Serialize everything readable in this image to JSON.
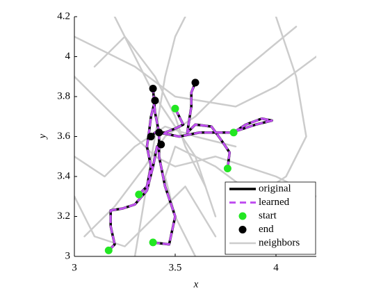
{
  "chart_data": {
    "type": "trajectory",
    "x_label": "x",
    "y_label": "y",
    "xlim": [
      3,
      4.2
    ],
    "ylim": [
      3,
      4.2
    ],
    "xticks": [
      3,
      3.5,
      4
    ],
    "yticks": [
      3,
      3.2,
      3.4,
      3.6,
      3.8,
      4,
      4.2
    ],
    "legend": "lower right",
    "series": [
      {
        "name": "original",
        "color": "#000000",
        "style": "solid",
        "width": 3.5,
        "trajectories": [
          {
            "x": [
              3.17,
              3.2,
              3.18,
              3.18,
              3.24,
              3.3,
              3.36,
              3.39,
              3.41,
              3.43
            ],
            "y": [
              3.03,
              3.06,
              3.15,
              3.23,
              3.24,
              3.26,
              3.33,
              3.45,
              3.55,
              3.56
            ]
          },
          {
            "x": [
              3.32,
              3.36,
              3.38,
              3.36,
              3.37,
              3.38,
              3.4
            ],
            "y": [
              3.31,
              3.35,
              3.45,
              3.55,
              3.62,
              3.7,
              3.78
            ]
          },
          {
            "x": [
              3.39,
              3.47,
              3.5,
              3.45,
              3.42,
              3.42
            ],
            "y": [
              3.07,
              3.06,
              3.2,
              3.35,
              3.5,
              3.62
            ]
          },
          {
            "x": [
              3.5,
              3.54,
              3.5,
              3.45,
              3.4,
              3.38
            ],
            "y": [
              3.74,
              3.66,
              3.64,
              3.62,
              3.62,
              3.6
            ]
          },
          {
            "x": [
              3.76,
              3.77,
              3.73,
              3.68,
              3.6,
              3.56,
              3.58,
              3.58,
              3.6
            ],
            "y": [
              3.44,
              3.52,
              3.58,
              3.65,
              3.66,
              3.62,
              3.75,
              3.82,
              3.87
            ]
          },
          {
            "x": [
              3.79,
              3.85,
              3.93,
              3.98,
              3.9,
              3.78,
              3.62,
              3.52,
              3.42,
              3.4,
              3.39
            ],
            "y": [
              3.62,
              3.66,
              3.69,
              3.68,
              3.66,
              3.62,
              3.62,
              3.6,
              3.62,
              3.72,
              3.84
            ]
          }
        ]
      },
      {
        "name": "learned",
        "color": "#c050f0",
        "style": "dashed",
        "width": 3,
        "trajectories": [
          {
            "x": [
              3.17,
              3.2,
              3.18,
              3.18,
              3.24,
              3.3,
              3.36,
              3.39,
              3.41,
              3.43
            ],
            "y": [
              3.03,
              3.06,
              3.15,
              3.23,
              3.24,
              3.26,
              3.33,
              3.45,
              3.55,
              3.56
            ]
          },
          {
            "x": [
              3.32,
              3.36,
              3.38,
              3.36,
              3.37,
              3.38,
              3.4
            ],
            "y": [
              3.31,
              3.35,
              3.45,
              3.55,
              3.62,
              3.7,
              3.78
            ]
          },
          {
            "x": [
              3.39,
              3.47,
              3.5,
              3.45,
              3.42,
              3.42
            ],
            "y": [
              3.07,
              3.06,
              3.2,
              3.35,
              3.5,
              3.62
            ]
          },
          {
            "x": [
              3.5,
              3.54,
              3.5,
              3.45,
              3.4,
              3.38
            ],
            "y": [
              3.74,
              3.66,
              3.64,
              3.62,
              3.62,
              3.6
            ]
          },
          {
            "x": [
              3.76,
              3.77,
              3.73,
              3.68,
              3.6,
              3.56,
              3.58,
              3.58,
              3.6
            ],
            "y": [
              3.44,
              3.52,
              3.58,
              3.65,
              3.66,
              3.62,
              3.75,
              3.82,
              3.87
            ]
          },
          {
            "x": [
              3.79,
              3.85,
              3.93,
              3.98,
              3.9,
              3.78,
              3.62,
              3.52,
              3.42,
              3.4,
              3.39
            ],
            "y": [
              3.62,
              3.66,
              3.69,
              3.68,
              3.66,
              3.62,
              3.62,
              3.6,
              3.62,
              3.72,
              3.84
            ]
          }
        ]
      },
      {
        "name": "start",
        "color": "#22e622",
        "marker": "circle",
        "x": [
          3.17,
          3.32,
          3.39,
          3.5,
          3.76,
          3.79
        ],
        "y": [
          3.03,
          3.31,
          3.07,
          3.74,
          3.44,
          3.62
        ]
      },
      {
        "name": "end",
        "color": "#000000",
        "marker": "circle",
        "x": [
          3.43,
          3.4,
          3.42,
          3.38,
          3.6,
          3.39
        ],
        "y": [
          3.56,
          3.78,
          3.62,
          3.6,
          3.87,
          3.84
        ]
      },
      {
        "name": "neighbors",
        "color": "#cccccc",
        "style": "solid",
        "width": 2.5,
        "trajectories": [
          {
            "x": [
              3.0,
              3.2,
              3.4,
              3.5,
              3.7,
              4.0,
              4.2
            ],
            "y": [
              3.9,
              3.7,
              3.5,
              3.45,
              3.5,
              3.4,
              3.3
            ]
          },
          {
            "x": [
              3.05,
              3.2,
              3.35,
              3.45,
              3.6,
              3.8,
              4.1
            ],
            "y": [
              3.1,
              3.25,
              3.45,
              3.6,
              3.7,
              3.9,
              4.15
            ]
          },
          {
            "x": [
              3.3,
              3.35,
              3.4,
              3.45,
              3.5,
              3.55
            ],
            "y": [
              3.0,
              3.3,
              3.6,
              3.9,
              4.1,
              4.2
            ]
          },
          {
            "x": [
              3.0,
              3.3,
              3.5,
              3.8,
              4.0,
              4.2
            ],
            "y": [
              4.1,
              3.95,
              3.8,
              3.75,
              3.85,
              4.0
            ]
          },
          {
            "x": [
              3.6,
              3.5,
              3.45,
              3.5,
              3.7,
              3.9
            ],
            "y": [
              3.0,
              3.2,
              3.4,
              3.55,
              3.45,
              3.3
            ]
          },
          {
            "x": [
              3.0,
              3.15,
              3.3,
              3.45,
              3.6,
              3.8
            ],
            "y": [
              3.5,
              3.4,
              3.55,
              3.65,
              3.6,
              3.55
            ]
          },
          {
            "x": [
              3.2,
              3.3,
              3.4,
              3.5,
              3.6,
              3.7
            ],
            "y": [
              4.2,
              4.0,
              3.8,
              3.65,
              3.5,
              3.2
            ]
          },
          {
            "x": [
              3.8,
              3.9,
              4.05,
              4.15,
              4.1,
              4.0
            ],
            "y": [
              3.1,
              3.3,
              3.4,
              3.6,
              3.9,
              4.2
            ]
          },
          {
            "x": [
              3.0,
              3.1,
              3.25,
              3.4,
              3.55,
              3.7
            ],
            "y": [
              3.3,
              3.1,
              3.05,
              3.2,
              3.35,
              3.1
            ]
          },
          {
            "x": [
              3.1,
              3.25,
              3.4,
              3.5,
              3.55,
              3.65
            ],
            "y": [
              3.95,
              4.1,
              3.9,
              3.7,
              3.55,
              3.35
            ]
          }
        ]
      }
    ]
  }
}
